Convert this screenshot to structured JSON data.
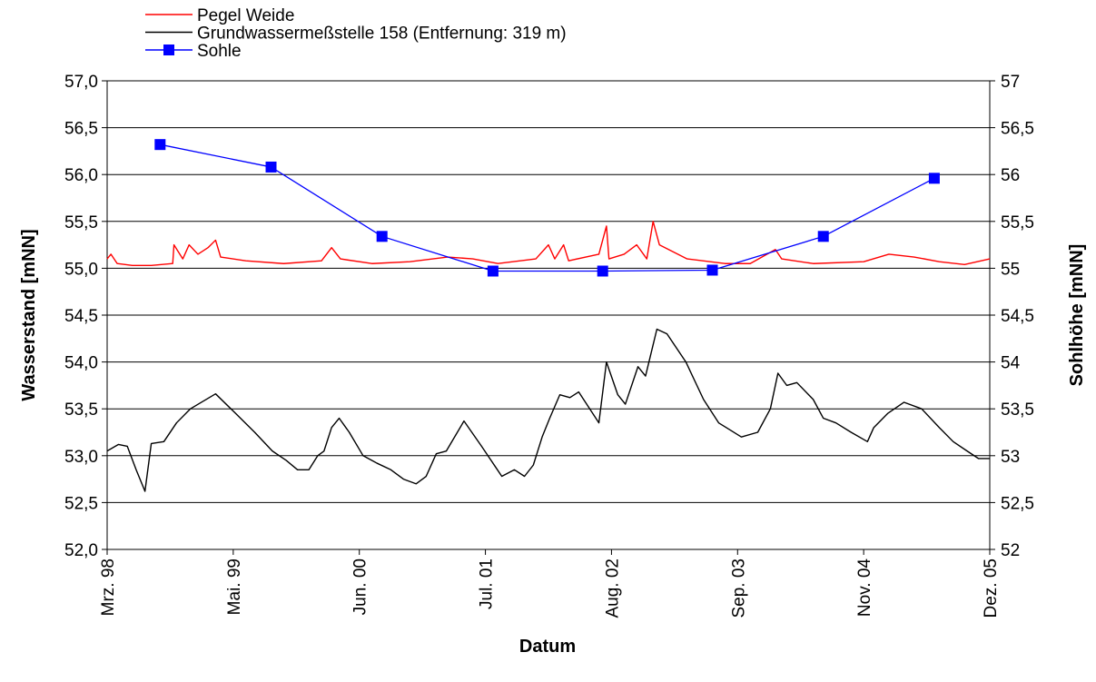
{
  "chart_data": {
    "type": "line",
    "x_label": "Datum",
    "y_label": "Wasserstand [mNN]",
    "y2_label": "Sohlhöhe [mNN]",
    "xlim": [
      0,
      7
    ],
    "xticks": [
      {
        "value": 0,
        "label": "Mrz. 98"
      },
      {
        "value": 1,
        "label": "Mai. 99"
      },
      {
        "value": 2,
        "label": "Jun. 00"
      },
      {
        "value": 3,
        "label": "Jul. 01"
      },
      {
        "value": 4,
        "label": "Aug. 02"
      },
      {
        "value": 5,
        "label": "Sep. 03"
      },
      {
        "value": 6,
        "label": "Nov. 04"
      },
      {
        "value": 7,
        "label": "Dez. 05"
      }
    ],
    "ylim": [
      52,
      57
    ],
    "yticks": [
      {
        "value": 52,
        "label": "52,0"
      },
      {
        "value": 52.5,
        "label": "52,5"
      },
      {
        "value": 53,
        "label": "53,0"
      },
      {
        "value": 53.5,
        "label": "53,5"
      },
      {
        "value": 54,
        "label": "54,0"
      },
      {
        "value": 54.5,
        "label": "54,5"
      },
      {
        "value": 55,
        "label": "55,0"
      },
      {
        "value": 55.5,
        "label": "55,5"
      },
      {
        "value": 56,
        "label": "56,0"
      },
      {
        "value": 56.5,
        "label": "56,5"
      },
      {
        "value": 57,
        "label": "57,0"
      }
    ],
    "y2lim": [
      52,
      57
    ],
    "y2ticks": [
      52,
      {
        "value": 52.5,
        "label": "52,5"
      },
      53,
      {
        "value": 53.5,
        "label": "53,5"
      },
      54,
      {
        "value": 54.5,
        "label": "54,5"
      },
      55,
      {
        "value": 55.5,
        "label": "55,5"
      },
      56,
      {
        "value": 56.5,
        "label": "56,5"
      },
      57
    ],
    "grid": true,
    "legend": "top-left",
    "series": [
      {
        "name": "Pegel Weide",
        "color": "#ff0000",
        "marker": false,
        "x": [
          0,
          0.03,
          0.08,
          0.2,
          0.35,
          0.52,
          0.53,
          0.6,
          0.65,
          0.72,
          0.8,
          0.86,
          0.9,
          1.1,
          1.4,
          1.7,
          1.78,
          1.85,
          2.1,
          2.4,
          2.7,
          2.9,
          3.1,
          3.4,
          3.5,
          3.55,
          3.62,
          3.66,
          3.9,
          3.96,
          3.98,
          4.1,
          4.2,
          4.28,
          4.33,
          4.38,
          4.6,
          4.9,
          5.1,
          5.3,
          5.35,
          5.6,
          6.0,
          6.2,
          6.4,
          6.6,
          6.8,
          7.0
        ],
        "values": [
          55.1,
          55.15,
          55.05,
          55.03,
          55.03,
          55.05,
          55.25,
          55.1,
          55.25,
          55.15,
          55.22,
          55.3,
          55.12,
          55.08,
          55.05,
          55.08,
          55.22,
          55.1,
          55.05,
          55.07,
          55.12,
          55.1,
          55.05,
          55.1,
          55.25,
          55.1,
          55.25,
          55.08,
          55.15,
          55.45,
          55.1,
          55.15,
          55.25,
          55.1,
          55.5,
          55.25,
          55.1,
          55.05,
          55.05,
          55.2,
          55.1,
          55.05,
          55.07,
          55.15,
          55.12,
          55.07,
          55.04,
          55.1
        ]
      },
      {
        "name": "Grundwassermeßstelle 158 (Entfernung: 319 m)",
        "color": "#000000",
        "marker": false,
        "x": [
          0,
          0.09,
          0.16,
          0.23,
          0.3,
          0.35,
          0.45,
          0.55,
          0.66,
          0.86,
          1.02,
          1.17,
          1.31,
          1.42,
          1.51,
          1.6,
          1.67,
          1.72,
          1.78,
          1.84,
          1.92,
          2.03,
          2.14,
          2.25,
          2.35,
          2.45,
          2.53,
          2.61,
          2.69,
          2.83,
          2.97,
          3.08,
          3.13,
          3.23,
          3.31,
          3.38,
          3.45,
          3.51,
          3.59,
          3.67,
          3.74,
          3.9,
          3.96,
          4.05,
          4.11,
          4.21,
          4.27,
          4.36,
          4.44,
          4.59,
          4.73,
          4.85,
          4.91,
          5.03,
          5.16,
          5.26,
          5.32,
          5.39,
          5.47,
          5.6,
          5.68,
          5.78,
          5.9,
          6.03,
          6.08,
          6.19,
          6.32,
          6.46,
          6.6,
          6.71,
          6.82,
          6.91,
          7.0
        ],
        "values": [
          53.05,
          53.12,
          53.1,
          52.85,
          52.62,
          53.13,
          53.15,
          53.35,
          53.5,
          53.66,
          53.45,
          53.25,
          53.05,
          52.95,
          52.85,
          52.85,
          53.0,
          53.05,
          53.3,
          53.4,
          53.25,
          53.0,
          52.92,
          52.85,
          52.75,
          52.7,
          52.78,
          53.02,
          53.05,
          53.37,
          53.1,
          52.88,
          52.78,
          52.85,
          52.78,
          52.9,
          53.2,
          53.4,
          53.65,
          53.62,
          53.68,
          53.35,
          54.0,
          53.65,
          53.55,
          53.95,
          53.85,
          54.35,
          54.3,
          54.0,
          53.6,
          53.35,
          53.3,
          53.2,
          53.25,
          53.5,
          53.88,
          53.75,
          53.78,
          53.6,
          53.4,
          53.35,
          53.25,
          53.15,
          53.3,
          53.45,
          53.57,
          53.5,
          53.3,
          53.15,
          53.05,
          52.97,
          52.97
        ]
      },
      {
        "name": "Sohle",
        "color": "#0000ff",
        "marker": true,
        "axis": "y2",
        "x": [
          0.42,
          1.3,
          2.18,
          3.06,
          3.93,
          4.8,
          5.68,
          6.56
        ],
        "values": [
          56.32,
          56.08,
          55.34,
          54.97,
          54.97,
          54.98,
          55.34,
          55.96
        ]
      }
    ]
  }
}
